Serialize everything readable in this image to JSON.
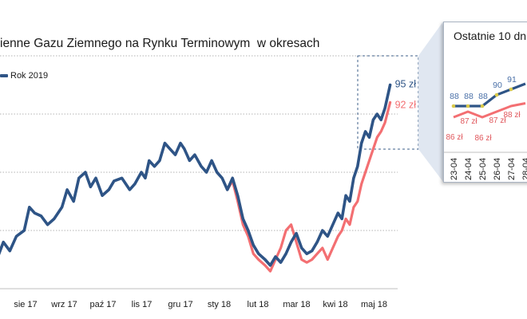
{
  "chart_data": [
    {
      "type": "line",
      "title": "ienne Gazu Ziemnego na Rynku Terminowym  w okresach",
      "legend": {
        "placement": "top-left",
        "entries": [
          "Rok 2019"
        ]
      },
      "grid": "horizontal-dotted",
      "x_ticks": [
        "sie 17",
        "wrz 17",
        "paź 17",
        "lis 17",
        "gru 17",
        "sty 18",
        "lut 18",
        "mar 18",
        "kwi 18",
        "maj 18"
      ],
      "x_domain": [
        "2017-07-15",
        "2018-05-20"
      ],
      "ylim": [
        60,
        100
      ],
      "series": [
        {
          "name": "Rok 2019",
          "color": "#2e5486",
          "end_label": "95 zł",
          "points": [
            [
              "2017-07-15",
              65
            ],
            [
              "2017-07-20",
              68
            ],
            [
              "2017-07-25",
              66.5
            ],
            [
              "2017-07-30",
              69
            ],
            [
              "2017-08-05",
              70
            ],
            [
              "2017-08-09",
              74
            ],
            [
              "2017-08-13",
              73
            ],
            [
              "2017-08-18",
              72.5
            ],
            [
              "2017-08-23",
              71
            ],
            [
              "2017-08-28",
              72
            ],
            [
              "2017-09-03",
              74
            ],
            [
              "2017-09-07",
              77
            ],
            [
              "2017-09-12",
              75
            ],
            [
              "2017-09-16",
              79
            ],
            [
              "2017-09-21",
              80
            ],
            [
              "2017-09-25",
              77.5
            ],
            [
              "2017-09-29",
              79
            ],
            [
              "2017-10-04",
              76
            ],
            [
              "2017-10-09",
              77
            ],
            [
              "2017-10-13",
              78.5
            ],
            [
              "2017-10-19",
              79
            ],
            [
              "2017-10-25",
              77
            ],
            [
              "2017-10-29",
              78
            ],
            [
              "2017-11-03",
              80
            ],
            [
              "2017-11-06",
              79
            ],
            [
              "2017-11-09",
              82
            ],
            [
              "2017-11-13",
              81
            ],
            [
              "2017-11-17",
              82
            ],
            [
              "2017-11-21",
              85
            ],
            [
              "2017-11-25",
              84
            ],
            [
              "2017-11-29",
              83
            ],
            [
              "2017-12-03",
              85
            ],
            [
              "2017-12-06",
              84
            ],
            [
              "2017-12-10",
              82
            ],
            [
              "2017-12-14",
              83
            ],
            [
              "2017-12-19",
              81
            ],
            [
              "2017-12-23",
              80
            ],
            [
              "2017-12-27",
              82
            ],
            [
              "2017-12-31",
              80
            ],
            [
              "2018-01-04",
              79
            ],
            [
              "2018-01-08",
              77
            ],
            [
              "2018-01-12",
              79
            ],
            [
              "2018-01-16",
              76
            ],
            [
              "2018-01-20",
              72
            ],
            [
              "2018-01-24",
              70
            ],
            [
              "2018-01-28",
              67.5
            ],
            [
              "2018-02-01",
              66
            ],
            [
              "2018-02-06",
              65
            ],
            [
              "2018-02-10",
              64
            ],
            [
              "2018-02-14",
              65.5
            ],
            [
              "2018-02-18",
              64.5
            ],
            [
              "2018-02-22",
              66
            ],
            [
              "2018-02-26",
              68
            ],
            [
              "2018-03-02",
              69.5
            ],
            [
              "2018-03-06",
              67
            ],
            [
              "2018-03-10",
              66
            ],
            [
              "2018-03-14",
              66.5
            ],
            [
              "2018-03-18",
              68
            ],
            [
              "2018-03-22",
              70
            ],
            [
              "2018-03-26",
              69
            ],
            [
              "2018-03-30",
              71
            ],
            [
              "2018-04-03",
              73
            ],
            [
              "2018-04-06",
              72
            ],
            [
              "2018-04-09",
              76
            ],
            [
              "2018-04-12",
              75
            ],
            [
              "2018-04-15",
              79
            ],
            [
              "2018-04-18",
              81
            ],
            [
              "2018-04-21",
              85
            ],
            [
              "2018-04-24",
              87
            ],
            [
              "2018-04-27",
              86
            ],
            [
              "2018-04-30",
              89
            ],
            [
              "2018-05-03",
              90
            ],
            [
              "2018-05-06",
              89
            ],
            [
              "2018-05-09",
              91
            ],
            [
              "2018-05-13",
              95
            ]
          ]
        },
        {
          "name": "",
          "color": "#f36f72",
          "end_label": "92 zł",
          "points": [
            [
              "2018-01-08",
              77
            ],
            [
              "2018-01-12",
              78.5
            ],
            [
              "2018-01-16",
              75
            ],
            [
              "2018-01-20",
              71
            ],
            [
              "2018-01-24",
              69
            ],
            [
              "2018-01-28",
              66
            ],
            [
              "2018-02-01",
              65
            ],
            [
              "2018-02-06",
              64
            ],
            [
              "2018-02-10",
              63
            ],
            [
              "2018-02-14",
              65
            ],
            [
              "2018-02-18",
              67
            ],
            [
              "2018-02-22",
              70
            ],
            [
              "2018-02-26",
              71
            ],
            [
              "2018-03-02",
              68
            ],
            [
              "2018-03-06",
              65
            ],
            [
              "2018-03-10",
              64.5
            ],
            [
              "2018-03-14",
              65
            ],
            [
              "2018-03-18",
              66
            ],
            [
              "2018-03-22",
              67
            ],
            [
              "2018-03-26",
              65
            ],
            [
              "2018-03-30",
              67
            ],
            [
              "2018-04-03",
              69
            ],
            [
              "2018-04-06",
              70
            ],
            [
              "2018-04-09",
              72
            ],
            [
              "2018-04-12",
              71
            ],
            [
              "2018-04-15",
              74
            ],
            [
              "2018-04-18",
              75
            ],
            [
              "2018-04-21",
              78
            ],
            [
              "2018-04-24",
              80
            ],
            [
              "2018-04-27",
              82
            ],
            [
              "2018-04-30",
              84
            ],
            [
              "2018-05-03",
              86
            ],
            [
              "2018-05-06",
              87
            ],
            [
              "2018-05-09",
              88.5
            ],
            [
              "2018-05-13",
              92
            ]
          ]
        }
      ]
    },
    {
      "type": "line",
      "title": "Ostatnie 10 dn",
      "categories": [
        "23-04",
        "24-04",
        "25-04",
        "26-04",
        "27-04",
        "28-04"
      ],
      "series": [
        {
          "name": "",
          "color": "#2e5486",
          "values": [
            88,
            88,
            88,
            90,
            91,
            92
          ],
          "labels": [
            "88",
            "88",
            "88",
            "90",
            "91",
            ""
          ]
        },
        {
          "name": "",
          "color": "#f36f72",
          "values": [
            86,
            87,
            86,
            87,
            88,
            88.5
          ],
          "labels": [
            "86 zł",
            "87 zł",
            "86 zł",
            "87 zł",
            "88 zł",
            ""
          ]
        }
      ]
    }
  ]
}
